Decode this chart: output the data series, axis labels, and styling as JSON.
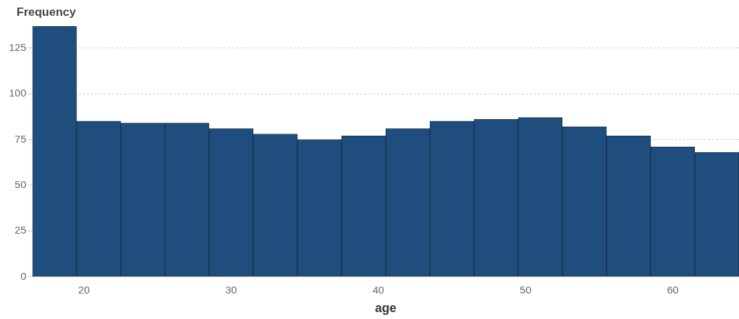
{
  "chart_data": {
    "type": "histogram",
    "xlabel": "age",
    "ylabel": "Frequency",
    "bins": [
      16.5,
      19.5,
      22.5,
      25.5,
      28.5,
      31.5,
      34.5,
      37.5,
      40.5,
      43.5,
      46.5,
      49.5,
      52.5,
      55.5,
      58.5,
      61.5,
      64.5
    ],
    "values": [
      137,
      85,
      84,
      84,
      81,
      78,
      75,
      77,
      81,
      85,
      86,
      87,
      82,
      77,
      71,
      68
    ],
    "color": "#1f4e7e",
    "xlim": [
      16.5,
      64.5
    ],
    "xticks": [
      20,
      30,
      40,
      50,
      60
    ],
    "ylim": [
      0,
      137
    ],
    "yticks": [
      0,
      25,
      50,
      75,
      100,
      125
    ],
    "grid": "y"
  }
}
